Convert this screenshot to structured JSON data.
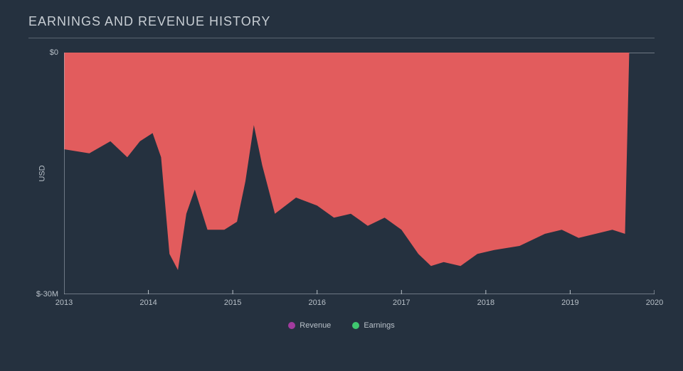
{
  "title": "EARNINGS AND REVENUE HISTORY",
  "chart": {
    "type": "area",
    "background_color": "#25313f",
    "text_color": "#b8c0c8",
    "title_color": "#c8ced4",
    "divider_color": "#5a6470",
    "axis_line_color": "#b8c0c8",
    "gridline_color": "#3a4654",
    "y_axis": {
      "label": "USD",
      "label_fontsize": 11,
      "ticks": [
        {
          "value": 0,
          "label": "$0"
        },
        {
          "value": -30,
          "label": "$-30M"
        }
      ],
      "ylim": [
        -30,
        0
      ]
    },
    "x_axis": {
      "ticks": [
        {
          "value": 2013,
          "label": "2013"
        },
        {
          "value": 2014,
          "label": "2014"
        },
        {
          "value": 2015,
          "label": "2015"
        },
        {
          "value": 2016,
          "label": "2016"
        },
        {
          "value": 2017,
          "label": "2017"
        },
        {
          "value": 2018,
          "label": "2018"
        },
        {
          "value": 2019,
          "label": "2019"
        },
        {
          "value": 2020,
          "label": "2020"
        }
      ],
      "xlim": [
        2013,
        2020
      ]
    },
    "series": [
      {
        "name": "Earnings",
        "color": "#ec5f5f",
        "fill_opacity": 0.95,
        "points": [
          {
            "x": 2013.0,
            "y": -12
          },
          {
            "x": 2013.3,
            "y": -12.5
          },
          {
            "x": 2013.55,
            "y": -11
          },
          {
            "x": 2013.75,
            "y": -13
          },
          {
            "x": 2013.9,
            "y": -11
          },
          {
            "x": 2014.05,
            "y": -10
          },
          {
            "x": 2014.15,
            "y": -13
          },
          {
            "x": 2014.25,
            "y": -25
          },
          {
            "x": 2014.35,
            "y": -27
          },
          {
            "x": 2014.45,
            "y": -20
          },
          {
            "x": 2014.55,
            "y": -17
          },
          {
            "x": 2014.7,
            "y": -22
          },
          {
            "x": 2014.9,
            "y": -22
          },
          {
            "x": 2015.05,
            "y": -21
          },
          {
            "x": 2015.15,
            "y": -16
          },
          {
            "x": 2015.25,
            "y": -9
          },
          {
            "x": 2015.35,
            "y": -14
          },
          {
            "x": 2015.5,
            "y": -20
          },
          {
            "x": 2015.75,
            "y": -18
          },
          {
            "x": 2016.0,
            "y": -19
          },
          {
            "x": 2016.2,
            "y": -20.5
          },
          {
            "x": 2016.4,
            "y": -20
          },
          {
            "x": 2016.6,
            "y": -21.5
          },
          {
            "x": 2016.8,
            "y": -20.5
          },
          {
            "x": 2017.0,
            "y": -22
          },
          {
            "x": 2017.2,
            "y": -25
          },
          {
            "x": 2017.35,
            "y": -26.5
          },
          {
            "x": 2017.5,
            "y": -26
          },
          {
            "x": 2017.7,
            "y": -26.5
          },
          {
            "x": 2017.9,
            "y": -25
          },
          {
            "x": 2018.1,
            "y": -24.5
          },
          {
            "x": 2018.4,
            "y": -24
          },
          {
            "x": 2018.7,
            "y": -22.5
          },
          {
            "x": 2018.9,
            "y": -22
          },
          {
            "x": 2019.1,
            "y": -23
          },
          {
            "x": 2019.3,
            "y": -22.5
          },
          {
            "x": 2019.5,
            "y": -22
          },
          {
            "x": 2019.65,
            "y": -22.5
          },
          {
            "x": 2019.7,
            "y": 0
          }
        ]
      }
    ],
    "legend": {
      "items": [
        {
          "label": "Revenue",
          "color": "#a23b9e"
        },
        {
          "label": "Earnings",
          "color": "#3fc76f"
        }
      ],
      "fontsize": 11
    }
  }
}
